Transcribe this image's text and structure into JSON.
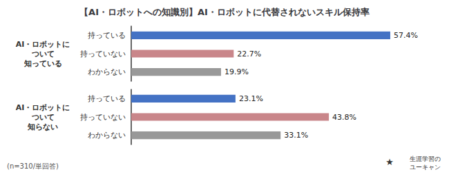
{
  "chart_data": {
    "type": "bar",
    "orientation": "horizontal",
    "title": "【AI・ロボットへの知識別】AI・ロボットに代替されないスキル保持率",
    "categories": [
      "持っている",
      "持っていない",
      "わからない"
    ],
    "colors": [
      "#4472c4",
      "#c9868a",
      "#999999"
    ],
    "series": [
      {
        "name": "AI・ロボットに\nついて\n知っている",
        "values": [
          57.4,
          22.7,
          19.9
        ],
        "value_labels": [
          "57.4%",
          "22.7%",
          "19.9%"
        ]
      },
      {
        "name": "AI・ロボットに\nついて\n知らない",
        "values": [
          23.1,
          43.8,
          33.1
        ],
        "value_labels": [
          "23.1%",
          "43.8%",
          "33.1%"
        ]
      }
    ],
    "xlim": [
      0,
      62
    ],
    "tick_labels": false,
    "grid": false,
    "legend": false,
    "data_labels": true,
    "annotations": [
      "(n=310/単回答)",
      "★",
      "生涯学習の",
      "ユーキャン"
    ]
  }
}
